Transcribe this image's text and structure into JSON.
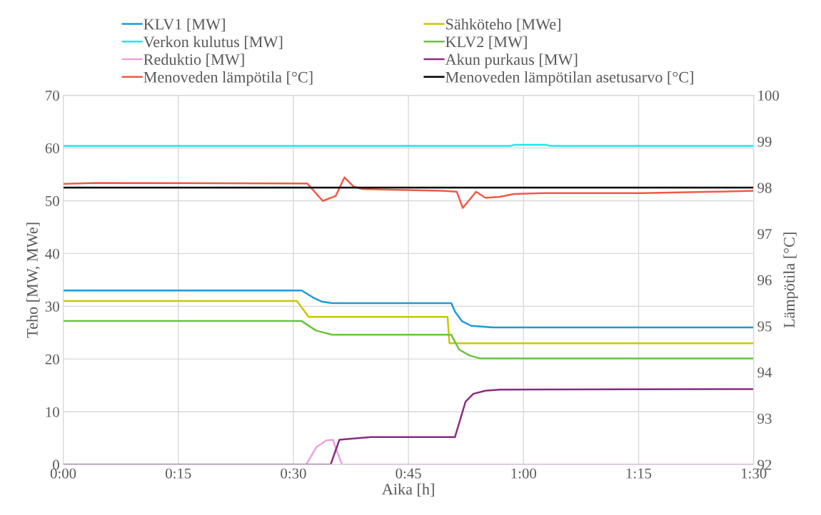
{
  "chart_data": {
    "type": "line",
    "xlabel": "Aika [h]",
    "ylabel": "Teho [MW, MWe]",
    "y2label": "Lämpötila [°C]",
    "xlim": [
      0,
      1.5
    ],
    "xticks": [
      {
        "value": 0,
        "label": "0:00"
      },
      {
        "value": 0.25,
        "label": "0:15"
      },
      {
        "value": 0.5,
        "label": "0:30"
      },
      {
        "value": 0.75,
        "label": "0:45"
      },
      {
        "value": 1,
        "label": "1:00"
      },
      {
        "value": 1.25,
        "label": "1:15"
      },
      {
        "value": 1.5,
        "label": "1:30"
      }
    ],
    "ylim": [
      0,
      70
    ],
    "yticks": [
      0,
      10,
      20,
      30,
      40,
      50,
      60,
      70
    ],
    "y2lim": [
      92,
      100
    ],
    "y2ticks": [
      92,
      93,
      94,
      95,
      96,
      97,
      98,
      99,
      100
    ],
    "grid": true,
    "legend": "top",
    "marker": "none",
    "line_style": "solid",
    "series": [
      {
        "name": "KLV1 [MW]",
        "color": "#1f9ad6",
        "x": [
          0,
          0.518,
          0.542,
          0.561,
          0.584,
          0.843,
          0.851,
          0.866,
          0.886,
          0.933,
          1.5
        ],
        "values": [
          33.0,
          33.0,
          31.7,
          30.9,
          30.6,
          30.6,
          29.0,
          27.2,
          26.3,
          26.0,
          26.0
        ]
      },
      {
        "name": "Sähköteho [MWe]",
        "color": "#c8c800",
        "x": [
          0,
          0.508,
          0.533,
          0.835,
          0.839,
          1.5
        ],
        "values": [
          31.0,
          31.0,
          28.0,
          28.0,
          23.0,
          23.0
        ]
      },
      {
        "name": "Verkon kulutus [MW]",
        "color": "#1ee6f0",
        "x": [
          0,
          0.972,
          0.98,
          1.05,
          1.057,
          1.5
        ],
        "values": [
          60.4,
          60.4,
          60.6,
          60.6,
          60.4,
          60.4
        ]
      },
      {
        "name": "KLV2 [MW]",
        "color": "#6cc33a",
        "x": [
          0,
          0.518,
          0.549,
          0.584,
          0.843,
          0.86,
          0.882,
          0.906,
          1.5
        ],
        "values": [
          27.2,
          27.2,
          25.4,
          24.6,
          24.6,
          21.8,
          20.7,
          20.1,
          20.1
        ]
      },
      {
        "name": "Reduktio [MW]",
        "color": "#e9a3e0",
        "x": [
          0,
          0.528,
          0.55,
          0.572,
          0.586,
          0.595,
          0.606,
          1.5
        ],
        "values": [
          0,
          0,
          3.3,
          4.6,
          4.7,
          2.4,
          0,
          0
        ]
      },
      {
        "name": "Akun purkaus [MW]",
        "color": "#8b2a82",
        "x": [
          0,
          0.581,
          0.6,
          0.669,
          0.851,
          0.874,
          0.891,
          0.917,
          0.948,
          1.5
        ],
        "values": [
          0,
          0,
          4.7,
          5.2,
          5.2,
          11.9,
          13.4,
          14.0,
          14.2,
          14.3
        ]
      },
      {
        "name": "Menoveden lämpötila [°C]",
        "color": "#f05a46",
        "axis": "y2",
        "x": [
          0,
          0.073,
          0.53,
          0.564,
          0.592,
          0.611,
          0.631,
          0.65,
          0.731,
          0.824,
          0.855,
          0.868,
          0.897,
          0.917,
          0.948,
          0.979,
          1.041,
          1.258,
          1.413,
          1.5
        ],
        "values": [
          98.08,
          98.1,
          98.09,
          97.71,
          97.82,
          98.22,
          98.02,
          97.97,
          97.95,
          97.93,
          97.91,
          97.56,
          97.91,
          97.78,
          97.8,
          97.86,
          97.88,
          97.88,
          97.91,
          97.93
        ]
      },
      {
        "name": "Menoveden lämpötilan asetusarvo [°C]",
        "color": "#000000",
        "axis": "y2",
        "x": [
          0,
          1.5
        ],
        "values": [
          98.0,
          98.0
        ]
      }
    ]
  }
}
